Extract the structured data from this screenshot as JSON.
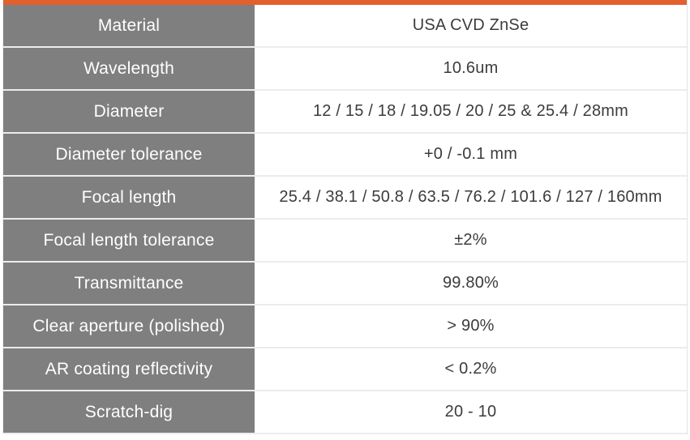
{
  "accent_color": "#e2602d",
  "label_column_bg": "#7f7f7f",
  "table": {
    "rows": [
      {
        "label": "Material",
        "value": "USA CVD ZnSe"
      },
      {
        "label": "Wavelength",
        "value": "10.6um"
      },
      {
        "label": "Diameter",
        "value": "12 / 15 / 18 / 19.05 / 20 / 25 & 25.4 / 28mm"
      },
      {
        "label": "Diameter tolerance",
        "value": "+0 / -0.1 mm"
      },
      {
        "label": "Focal length",
        "value": "25.4 / 38.1 / 50.8 / 63.5 / 76.2 / 101.6 / 127 / 160mm"
      },
      {
        "label": "Focal length tolerance",
        "value": "±2%"
      },
      {
        "label": "Transmittance",
        "value": "99.80%"
      },
      {
        "label": "Clear aperture (polished)",
        "value": "> 90%"
      },
      {
        "label": "AR coating reflectivity",
        "value": "< 0.2%"
      },
      {
        "label": "Scratch-dig",
        "value": "20 - 10"
      }
    ]
  }
}
